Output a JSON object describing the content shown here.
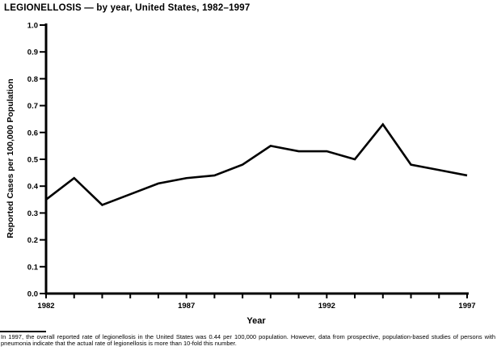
{
  "title": "LEGIONELLOSIS — by year, United States, 1982–1997",
  "chart_data": {
    "type": "line",
    "title": "LEGIONELLOSIS — by year, United States, 1982–1997",
    "x": [
      1982,
      1983,
      1984,
      1985,
      1986,
      1987,
      1988,
      1989,
      1990,
      1991,
      1992,
      1993,
      1994,
      1995,
      1996,
      1997
    ],
    "values": [
      0.35,
      0.43,
      0.33,
      0.37,
      0.41,
      0.43,
      0.44,
      0.48,
      0.55,
      0.53,
      0.53,
      0.5,
      0.63,
      0.48,
      0.46,
      0.44
    ],
    "xlabel": "Year",
    "ylabel": "Reported Cases per 100,000 Population",
    "ylim": [
      0.0,
      1.0
    ],
    "y_tick_interval": 0.1,
    "x_tick_interval": 1,
    "x_labeled_ticks": [
      1982,
      1987,
      1992,
      1997
    ],
    "grid": false,
    "legend": "none",
    "line_color": "#000000",
    "background_color": "#ffffff"
  },
  "footnote": {
    "text": "In 1997, the overall reported rate of legionellosis in the United States was 0.44 per 100,000 population. However, data from prospective, population-based studies of persons with pneumonia indicate that the actual rate of legionellosis is more than 10-fold this number."
  }
}
